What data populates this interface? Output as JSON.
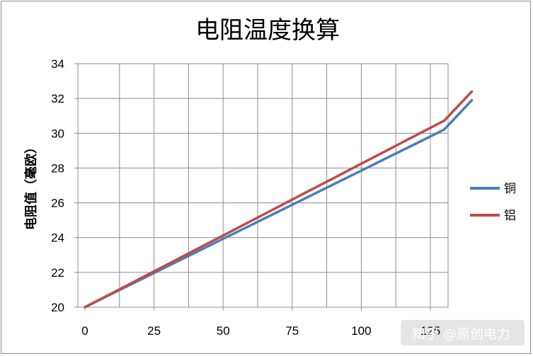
{
  "chart_data": {
    "type": "line",
    "title": "电阻温度换算",
    "xlabel": "",
    "ylabel": "电阻值（毫欧）",
    "x": [
      0,
      10,
      20,
      30,
      40,
      50,
      60,
      70,
      80,
      90,
      100,
      110,
      120,
      130,
      140
    ],
    "xticks": [
      0,
      25,
      50,
      75,
      100,
      125
    ],
    "xtick_labels": [
      "0",
      "25",
      "50",
      "75",
      "100",
      "125"
    ],
    "xlim": [
      -2,
      143
    ],
    "ylim": [
      20,
      34
    ],
    "yticks": [
      20,
      22,
      24,
      26,
      28,
      30,
      32,
      34
    ],
    "ytick_labels": [
      "20",
      "22",
      "24",
      "26",
      "28",
      "30",
      "32",
      "34"
    ],
    "grid": true,
    "legend_position": "right",
    "series": [
      {
        "name": "铜",
        "color": "#4a7ebb",
        "values": [
          20.0,
          20.79,
          21.57,
          22.36,
          23.14,
          23.93,
          24.71,
          25.5,
          26.28,
          27.07,
          27.85,
          28.64,
          29.42,
          30.21,
          31.9
        ]
      },
      {
        "name": "铝",
        "color": "#be4b48",
        "values": [
          20.0,
          20.82,
          21.65,
          22.47,
          23.3,
          24.12,
          24.95,
          25.77,
          26.6,
          27.42,
          28.25,
          29.07,
          29.9,
          30.72,
          32.4
        ]
      }
    ]
  },
  "watermark": "知乎 @原创电力"
}
